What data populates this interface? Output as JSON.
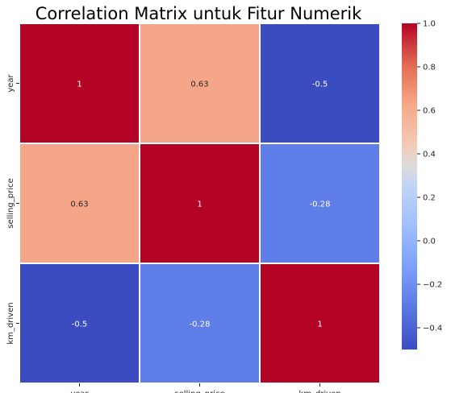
{
  "chart_data": {
    "type": "heatmap",
    "title": "Correlation Matrix untuk Fitur Numerik",
    "x_labels": [
      "year",
      "selling_price",
      "km_driven"
    ],
    "y_labels": [
      "year",
      "selling_price",
      "km_driven"
    ],
    "values": [
      [
        1,
        0.63,
        -0.5
      ],
      [
        0.63,
        1,
        -0.28
      ],
      [
        -0.5,
        -0.28,
        1
      ]
    ],
    "cell_labels": [
      [
        "1",
        "0.63",
        "-0.5"
      ],
      [
        "0.63",
        "1",
        "-0.28"
      ],
      [
        "-0.5",
        "-0.28",
        "1"
      ]
    ],
    "colorbar": {
      "colormap": "coolwarm",
      "range": [
        -0.5,
        1.0
      ],
      "ticks": [
        "1.0",
        "0.8",
        "0.6",
        "0.4",
        "0.2",
        "0.0",
        "−0.2",
        "−0.4"
      ],
      "tick_values": [
        1.0,
        0.8,
        0.6,
        0.4,
        0.2,
        0.0,
        -0.2,
        -0.4
      ]
    }
  }
}
